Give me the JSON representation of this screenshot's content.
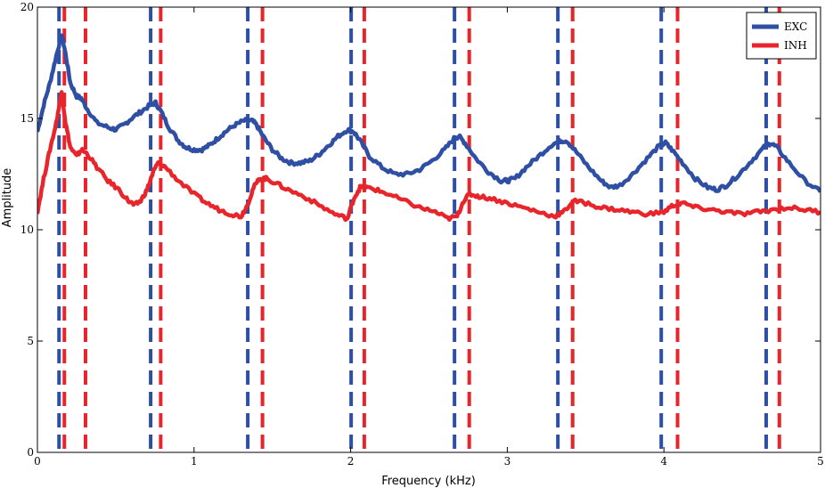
{
  "chart_data": {
    "type": "line",
    "title": "",
    "xlabel": "Frequency (kHz)",
    "ylabel": "Amplitude",
    "xlim": [
      0,
      5
    ],
    "ylim": [
      0,
      20
    ],
    "x_ticks": [
      0,
      1,
      2,
      3,
      4,
      5
    ],
    "x_tick_labels": [
      "0",
      "1",
      "2",
      "3",
      "4",
      "5"
    ],
    "y_ticks": [
      0,
      5,
      10,
      15,
      20
    ],
    "y_tick_labels": [
      "0",
      "5",
      "10",
      "15",
      "20"
    ],
    "grid": false,
    "legend_position": "top-right",
    "series": [
      {
        "name": "EXC",
        "color": "#2e4fa3",
        "x": [
          0,
          0.04,
          0.08,
          0.12,
          0.155,
          0.18,
          0.21,
          0.25,
          0.28,
          0.32,
          0.38,
          0.45,
          0.5,
          0.55,
          0.6,
          0.66,
          0.72,
          0.755,
          0.79,
          0.84,
          0.9,
          0.95,
          1.0,
          1.05,
          1.1,
          1.15,
          1.2,
          1.26,
          1.32,
          1.37,
          1.4,
          1.44,
          1.5,
          1.56,
          1.62,
          1.68,
          1.74,
          1.8,
          1.86,
          1.92,
          1.98,
          2.02,
          2.06,
          2.12,
          2.2,
          2.28,
          2.36,
          2.44,
          2.52,
          2.6,
          2.66,
          2.69,
          2.73,
          2.8,
          2.88,
          2.96,
          3.0,
          3.05,
          3.12,
          3.2,
          3.28,
          3.34,
          3.38,
          3.44,
          3.52,
          3.6,
          3.66,
          3.72,
          3.8,
          3.88,
          3.96,
          4.01,
          4.05,
          4.12,
          4.2,
          4.28,
          4.34,
          4.4,
          4.48,
          4.56,
          4.64,
          4.68,
          4.72,
          4.8,
          4.9,
          5.0
        ],
        "y": [
          14.4,
          15.6,
          16.6,
          17.8,
          18.8,
          17.9,
          16.6,
          16.0,
          15.9,
          15.4,
          14.8,
          14.6,
          14.5,
          14.7,
          15.0,
          15.3,
          15.6,
          15.7,
          15.3,
          14.6,
          14.0,
          13.7,
          13.6,
          13.6,
          13.8,
          14.1,
          14.4,
          14.7,
          14.9,
          14.9,
          14.7,
          14.2,
          13.6,
          13.2,
          13.0,
          13.0,
          13.1,
          13.4,
          13.8,
          14.2,
          14.5,
          14.4,
          14.0,
          13.3,
          12.8,
          12.5,
          12.5,
          12.7,
          13.1,
          13.6,
          14.1,
          14.2,
          13.9,
          13.2,
          12.6,
          12.2,
          12.2,
          12.3,
          12.8,
          13.3,
          13.8,
          14.0,
          14.0,
          13.5,
          12.8,
          12.2,
          11.9,
          12.0,
          12.5,
          13.1,
          13.7,
          13.9,
          13.6,
          13.0,
          12.3,
          11.9,
          11.8,
          12.0,
          12.5,
          13.1,
          13.7,
          13.9,
          13.7,
          13.0,
          12.2,
          11.7
        ]
      },
      {
        "name": "INH",
        "color": "#e8252b",
        "x": [
          0,
          0.04,
          0.08,
          0.12,
          0.155,
          0.18,
          0.21,
          0.25,
          0.28,
          0.32,
          0.38,
          0.45,
          0.52,
          0.58,
          0.62,
          0.66,
          0.7,
          0.74,
          0.77,
          0.82,
          0.9,
          1.0,
          1.08,
          1.16,
          1.24,
          1.3,
          1.34,
          1.38,
          1.42,
          1.46,
          1.52,
          1.6,
          1.7,
          1.8,
          1.9,
          1.98,
          2.02,
          2.06,
          2.1,
          2.16,
          2.24,
          2.34,
          2.44,
          2.54,
          2.62,
          2.68,
          2.72,
          2.76,
          2.82,
          2.9,
          3.0,
          3.1,
          3.2,
          3.3,
          3.36,
          3.42,
          3.5,
          3.6,
          3.7,
          3.8,
          3.9,
          4.0,
          4.06,
          4.12,
          4.2,
          4.3,
          4.4,
          4.5,
          4.6,
          4.7,
          4.8,
          4.9,
          5.0
        ],
        "y": [
          10.8,
          12.3,
          13.6,
          14.8,
          16.2,
          14.8,
          13.7,
          13.3,
          13.6,
          13.4,
          12.8,
          12.2,
          11.8,
          11.3,
          11.1,
          11.3,
          11.8,
          12.6,
          13.0,
          12.8,
          12.2,
          11.6,
          11.2,
          10.9,
          10.7,
          10.6,
          11.1,
          11.9,
          12.3,
          12.3,
          12.1,
          11.8,
          11.5,
          11.1,
          10.7,
          10.5,
          11.4,
          11.9,
          11.9,
          11.8,
          11.6,
          11.3,
          11.0,
          10.8,
          10.5,
          10.6,
          11.3,
          11.6,
          11.5,
          11.4,
          11.2,
          11.0,
          10.8,
          10.6,
          10.8,
          11.3,
          11.2,
          11.0,
          10.9,
          10.8,
          10.7,
          10.8,
          11.1,
          11.2,
          11.0,
          10.9,
          10.8,
          10.7,
          10.8,
          10.9,
          11.0,
          10.9,
          10.8
        ]
      }
    ],
    "vertical_lines": {
      "style": "dashed",
      "EXC": [
        0.155,
        0.74,
        1.36,
        2.02,
        2.68,
        3.34,
        4.0,
        4.67
      ],
      "INH": [
        0.155,
        0.29,
        0.77,
        1.42,
        2.07,
        2.74,
        3.4,
        4.07,
        4.72
      ]
    }
  }
}
